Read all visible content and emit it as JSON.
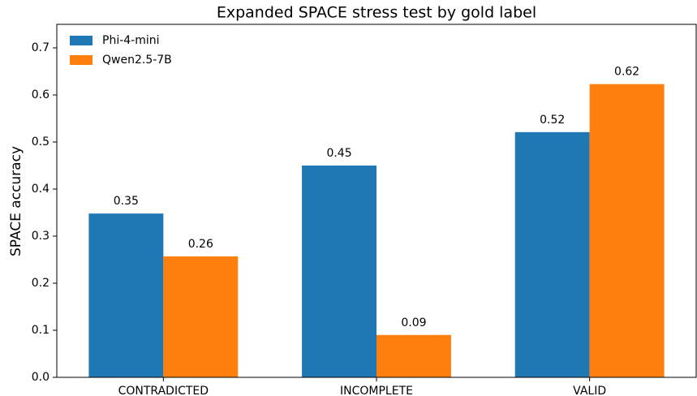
{
  "chart_data": {
    "type": "bar",
    "title": "Expanded SPACE stress test by gold label",
    "ylabel": "SPACE accuracy",
    "categories": [
      "CONTRADICTED",
      "INCOMPLETE",
      "VALID"
    ],
    "series": [
      {
        "name": "Phi-4-mini",
        "color": "#1f77b4",
        "values": [
          0.348,
          0.45,
          0.521
        ],
        "value_labels": [
          "0.35",
          "0.45",
          "0.52"
        ]
      },
      {
        "name": "Qwen2.5-7B",
        "color": "#ff7f0e",
        "values": [
          0.257,
          0.09,
          0.623
        ],
        "value_labels": [
          "0.26",
          "0.09",
          "0.62"
        ]
      }
    ],
    "ylim": [
      0,
      0.75
    ],
    "yticks": [
      {
        "value": 0,
        "label": "0.0"
      },
      0.1,
      0.2,
      0.3,
      0.4,
      0.5,
      0.6,
      0.7
    ],
    "legend": "upper left"
  }
}
